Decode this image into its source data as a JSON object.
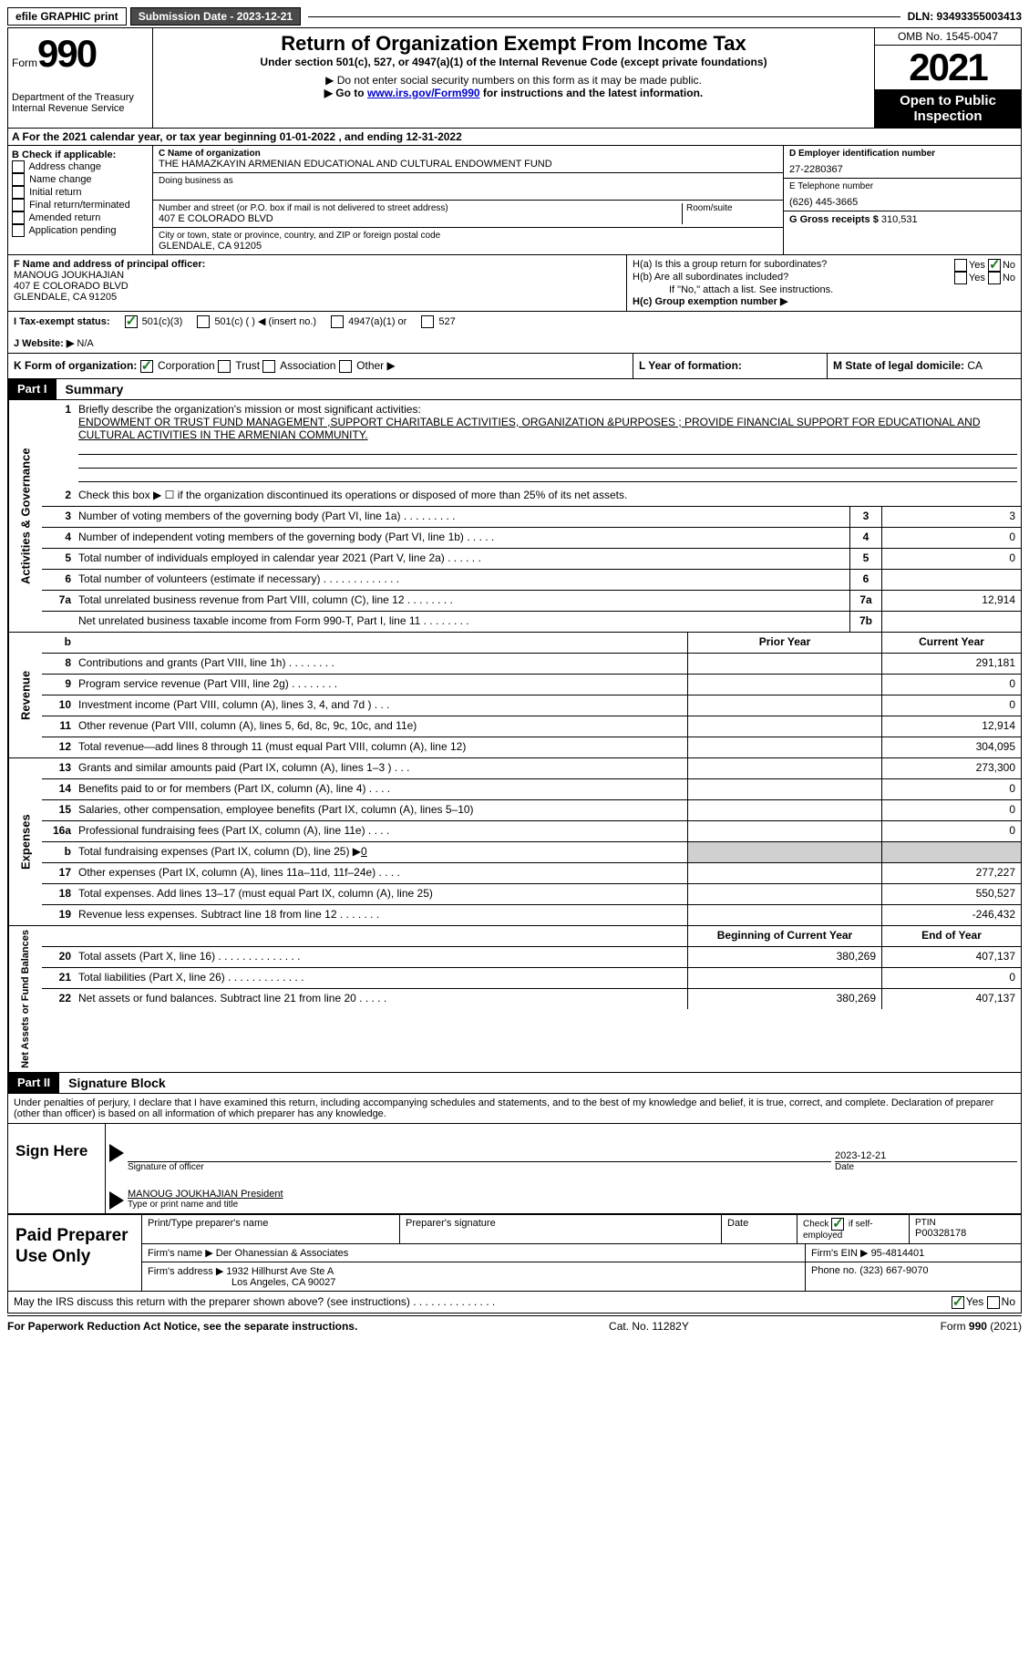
{
  "topbar": {
    "efile": "efile GRAPHIC print",
    "sub_date_label": "Submission Date - 2023-12-21",
    "dln_label": "DLN: 93493355003413"
  },
  "header": {
    "form_word": "Form",
    "form_num": "990",
    "dept": "Department of the Treasury\nInternal Revenue Service",
    "title": "Return of Organization Exempt From Income Tax",
    "subtitle": "Under section 501(c), 527, or 4947(a)(1) of the Internal Revenue Code (except private foundations)",
    "note1": "▶ Do not enter social security numbers on this form as it may be made public.",
    "note2_pre": "▶ Go to ",
    "note2_link": "www.irs.gov/Form990",
    "note2_post": " for instructions and the latest information.",
    "omb": "OMB No. 1545-0047",
    "year": "2021",
    "public": "Open to Public Inspection"
  },
  "row_a": "A For the 2021 calendar year, or tax year beginning 01-01-2022   , and ending 12-31-2022",
  "col_b": {
    "label": "B Check if applicable:",
    "items": [
      "Address change",
      "Name change",
      "Initial return",
      "Final return/terminated",
      "Amended return",
      "Application pending"
    ]
  },
  "col_c": {
    "name_label": "C Name of organization",
    "name": "THE HAMAZKAYIN ARMENIAN EDUCATIONAL AND CULTURAL ENDOWMENT FUND",
    "dba_label": "Doing business as",
    "addr_label": "Number and street (or P.O. box if mail is not delivered to street address)",
    "room_label": "Room/suite",
    "addr": "407 E COLORADO BLVD",
    "city_label": "City or town, state or province, country, and ZIP or foreign postal code",
    "city": "GLENDALE, CA  91205"
  },
  "col_d": {
    "ein_label": "D Employer identification number",
    "ein": "27-2280367",
    "tel_label": "E Telephone number",
    "tel": "(626) 445-3665",
    "gross_label": "G Gross receipts $",
    "gross": "310,531"
  },
  "row_f": {
    "label": "F Name and address of principal officer:",
    "name": "MANOUG JOUKHAJIAN",
    "addr": "407 E COLORADO BLVD",
    "city": "GLENDALE, CA  91205"
  },
  "row_h": {
    "ha": "H(a)  Is this a group return for subordinates?",
    "hb": "H(b)  Are all subordinates included?",
    "hb_note": "If \"No,\" attach a list. See instructions.",
    "hc": "H(c)  Group exemption number ▶"
  },
  "row_i": {
    "label": "I    Tax-exempt status:",
    "opt1": "501(c)(3)",
    "opt2": "501(c) (  ) ◀ (insert no.)",
    "opt3": "4947(a)(1) or",
    "opt4": "527"
  },
  "row_j": {
    "label": "J   Website: ▶",
    "val": "N/A"
  },
  "row_k": {
    "label": "K Form of organization:",
    "corp": "Corporation",
    "trust": "Trust",
    "assoc": "Association",
    "other": "Other ▶"
  },
  "row_l": {
    "label": "L Year of formation:"
  },
  "row_m": {
    "label": "M State of legal domicile:",
    "val": "CA"
  },
  "part1": {
    "label": "Part I",
    "title": "Summary"
  },
  "mission": {
    "prompt": "Briefly describe the organization's mission or most significant activities:",
    "text": "ENDOWMENT OR TRUST FUND MANAGEMENT ,SUPPORT CHARITABLE ACTIVITIES, ORGANIZATION &PURPOSES ; PROVIDE FINANCIAL SUPPORT FOR EDUCATIONAL AND CULTURAL ACTIVITIES IN THE ARMENIAN COMMUNITY."
  },
  "lines_gov": [
    {
      "n": "1",
      "text_is_mission": true
    },
    {
      "n": "2",
      "text": "Check this box ▶ ☐  if the organization discontinued its operations or disposed of more than 25% of its net assets."
    },
    {
      "n": "3",
      "text": "Number of voting members of the governing body (Part VI, line 1a)  .   .   .   .   .   .   .   .   .",
      "box": "3",
      "val": "3"
    },
    {
      "n": "4",
      "text": "Number of independent voting members of the governing body (Part VI, line 1b)  .   .   .   .   .",
      "box": "4",
      "val": "0"
    },
    {
      "n": "5",
      "text": "Total number of individuals employed in calendar year 2021 (Part V, line 2a)  .   .   .   .   .   .",
      "box": "5",
      "val": "0"
    },
    {
      "n": "6",
      "text": "Total number of volunteers (estimate if necessary)    .   .   .   .   .   .   .   .   .   .   .   .   .",
      "box": "6",
      "val": ""
    },
    {
      "n": "7a",
      "text": "Total unrelated business revenue from Part VIII, column (C), line 12   .   .   .   .   .   .   .   .",
      "box": "7a",
      "val": "12,914"
    },
    {
      "n": "",
      "text": "Net unrelated business taxable income from Form 990-T, Part I, line 11  .   .   .   .   .   .   .   .",
      "box": "7b",
      "val": ""
    }
  ],
  "rev_header": {
    "n": "b",
    "prior": "Prior Year",
    "curr": "Current Year"
  },
  "lines_rev": [
    {
      "n": "8",
      "text": "Contributions and grants (Part VIII, line 1h)   .   .   .   .   .   .   .   .",
      "prior": "",
      "curr": "291,181"
    },
    {
      "n": "9",
      "text": "Program service revenue (Part VIII, line 2g)   .   .   .   .   .   .   .   .",
      "prior": "",
      "curr": "0"
    },
    {
      "n": "10",
      "text": "Investment income (Part VIII, column (A), lines 3, 4, and 7d )   .   .   .",
      "prior": "",
      "curr": "0"
    },
    {
      "n": "11",
      "text": "Other revenue (Part VIII, column (A), lines 5, 6d, 8c, 9c, 10c, and 11e)",
      "prior": "",
      "curr": "12,914"
    },
    {
      "n": "12",
      "text": "Total revenue—add lines 8 through 11 (must equal Part VIII, column (A), line 12)",
      "prior": "",
      "curr": "304,095"
    }
  ],
  "lines_exp": [
    {
      "n": "13",
      "text": "Grants and similar amounts paid (Part IX, column (A), lines 1–3 )   .   .   .",
      "prior": "",
      "curr": "273,300"
    },
    {
      "n": "14",
      "text": "Benefits paid to or for members (Part IX, column (A), line 4)   .   .   .   .",
      "prior": "",
      "curr": "0"
    },
    {
      "n": "15",
      "text": "Salaries, other compensation, employee benefits (Part IX, column (A), lines 5–10)",
      "prior": "",
      "curr": "0"
    },
    {
      "n": "16a",
      "text": "Professional fundraising fees (Part IX, column (A), line 11e)   .   .   .   .",
      "prior": "",
      "curr": "0"
    },
    {
      "n": "b",
      "text": "Total fundraising expenses (Part IX, column (D), line 25) ▶0",
      "prior": "shaded",
      "curr": "shaded"
    },
    {
      "n": "17",
      "text": "Other expenses (Part IX, column (A), lines 11a–11d, 11f–24e)   .   .   .   .",
      "prior": "",
      "curr": "277,227"
    },
    {
      "n": "18",
      "text": "Total expenses. Add lines 13–17 (must equal Part IX, column (A), line 25)",
      "prior": "",
      "curr": "550,527"
    },
    {
      "n": "19",
      "text": "Revenue less expenses. Subtract line 18 from line 12  .   .   .   .   .   .   .",
      "prior": "",
      "curr": "-246,432"
    }
  ],
  "net_header": {
    "prior": "Beginning of Current Year",
    "curr": "End of Year"
  },
  "lines_net": [
    {
      "n": "20",
      "text": "Total assets (Part X, line 16)  .   .   .   .   .   .   .   .   .   .   .   .   .   .",
      "prior": "380,269",
      "curr": "407,137"
    },
    {
      "n": "21",
      "text": "Total liabilities (Part X, line 26)  .   .   .   .   .   .   .   .   .   .   .   .   .",
      "prior": "",
      "curr": "0"
    },
    {
      "n": "22",
      "text": "Net assets or fund balances. Subtract line 21 from line 20  .   .   .   .   .",
      "prior": "380,269",
      "curr": "407,137"
    }
  ],
  "part2": {
    "label": "Part II",
    "title": "Signature Block"
  },
  "sig": {
    "decl": "Under penalties of perjury, I declare that I have examined this return, including accompanying schedules and statements, and to the best of my knowledge and belief, it is true, correct, and complete. Declaration of preparer (other than officer) is based on all information of which preparer has any knowledge.",
    "sign_here": "Sign Here",
    "sig_officer": "Signature of officer",
    "date": "2023-12-21",
    "date_label": "Date",
    "name": "MANOUG JOUKHAJIAN  President",
    "name_label": "Type or print name and title"
  },
  "prep": {
    "title": "Paid Preparer Use Only",
    "print_label": "Print/Type preparer's name",
    "sig_label": "Preparer's signature",
    "date_label": "Date",
    "check_label": "Check ☑ if self-employed",
    "ptin_label": "PTIN",
    "ptin": "P00328178",
    "firm_name_label": "Firm's name    ▶",
    "firm_name": "Der Ohanessian & Associates",
    "firm_ein_label": "Firm's EIN ▶",
    "firm_ein": "95-4814401",
    "firm_addr_label": "Firm's address ▶",
    "firm_addr1": "1932 Hillhurst Ave Ste A",
    "firm_addr2": "Los Angeles, CA  90027",
    "phone_label": "Phone no.",
    "phone": "(323) 667-9070"
  },
  "discuss": "May the IRS discuss this return with the preparer shown above? (see instructions)   .   .   .   .   .   .   .   .   .   .   .   .   .   .",
  "footer": {
    "left": "For Paperwork Reduction Act Notice, see the separate instructions.",
    "mid": "Cat. No. 11282Y",
    "right": "Form 990 (2021)"
  }
}
